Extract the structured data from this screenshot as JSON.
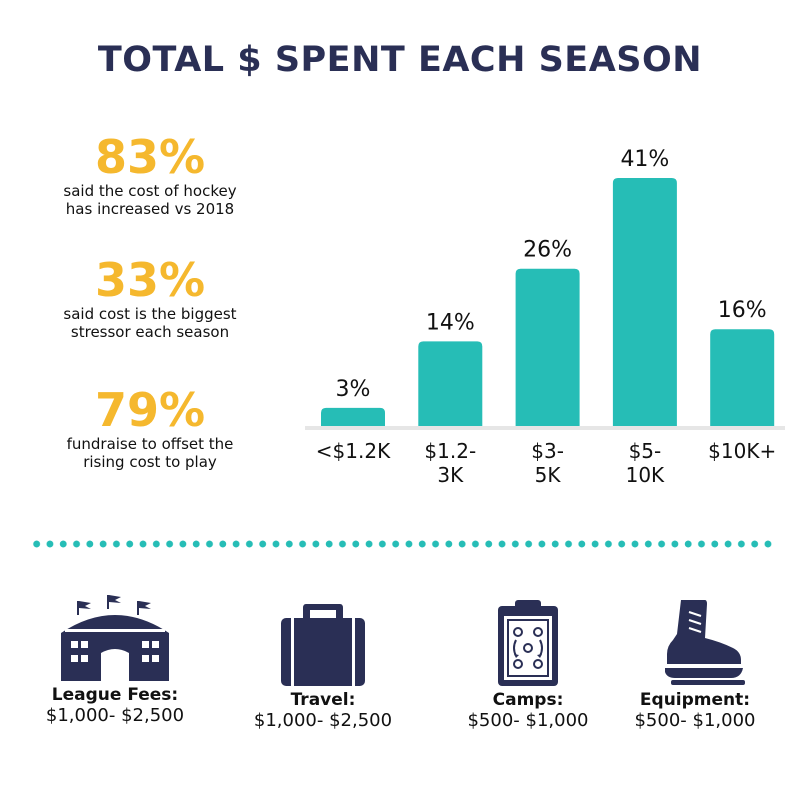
{
  "title": "TOTAL $ SPENT EACH SEASON",
  "stats": [
    {
      "value": "83%",
      "line1": "said the cost of hockey",
      "line2": "has increased vs 2018"
    },
    {
      "value": "33%",
      "line1": "said cost is the biggest",
      "line2": "stressor each season"
    },
    {
      "value": "79%",
      "line1": "fundraise to offset the",
      "line2": "rising cost to play"
    }
  ],
  "chart_data": {
    "type": "bar",
    "categories": [
      [
        "<$1.2K"
      ],
      [
        "$1.2-",
        "3K"
      ],
      [
        "$3-",
        "5K"
      ],
      [
        "$5-",
        "10K"
      ],
      [
        "$10K+"
      ]
    ],
    "values": [
      3,
      14,
      26,
      41,
      16
    ],
    "value_labels": [
      "3%",
      "14%",
      "26%",
      "41%",
      "16%"
    ],
    "ylim": [
      0,
      41
    ],
    "bar_color": "#26bdb6",
    "grid": false
  },
  "costs": [
    {
      "name": "League Fees:",
      "range": "$1,000- $2,500",
      "icon": "arena-icon"
    },
    {
      "name": "Travel:",
      "range": "$1,000- $2,500",
      "icon": "suitcase-icon"
    },
    {
      "name": "Camps:",
      "range": "$500- $1,000",
      "icon": "clipboard-play-icon"
    },
    {
      "name": "Equipment:",
      "range": "$500- $1,000",
      "icon": "skate-icon"
    }
  ],
  "colors": {
    "navy": "#2a2f55",
    "gold": "#f5b82e",
    "teal": "#26bdb6"
  }
}
